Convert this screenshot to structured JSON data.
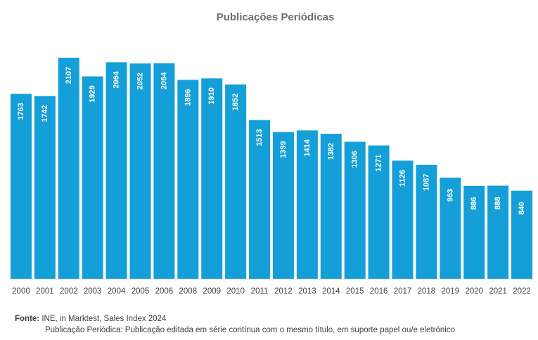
{
  "title": "Publicações Periódicas",
  "footer": {
    "source_label": "Fonte:",
    "source_text": " INE, in Marktest, Sales Index 2024",
    "note": "Publicação Periódica: Publicação editada em série contínua com o mesmo título, em suporte papel ou/e eletrónico"
  },
  "colors": {
    "bar": "#159fd8",
    "bar_label": "#ffffff",
    "axis": "#d9d9d9",
    "tick_label": "#404040"
  },
  "chart_data": {
    "type": "bar",
    "title": "Publicações Periódicas",
    "categories": [
      "2000",
      "2001",
      "2002",
      "2003",
      "2004",
      "2005",
      "2006",
      "2008",
      "2009",
      "2010",
      "2011",
      "2012",
      "2013",
      "2014",
      "2015",
      "2016",
      "2017",
      "2018",
      "2019",
      "2020",
      "2021",
      "2022"
    ],
    "values": [
      1763,
      1742,
      2107,
      1929,
      2064,
      2052,
      2054,
      1896,
      1910,
      1852,
      1513,
      1399,
      1414,
      1382,
      1306,
      1271,
      1126,
      1087,
      963,
      886,
      888,
      840
    ],
    "ylim": [
      0,
      2107
    ],
    "grid": false,
    "legend": "none"
  }
}
